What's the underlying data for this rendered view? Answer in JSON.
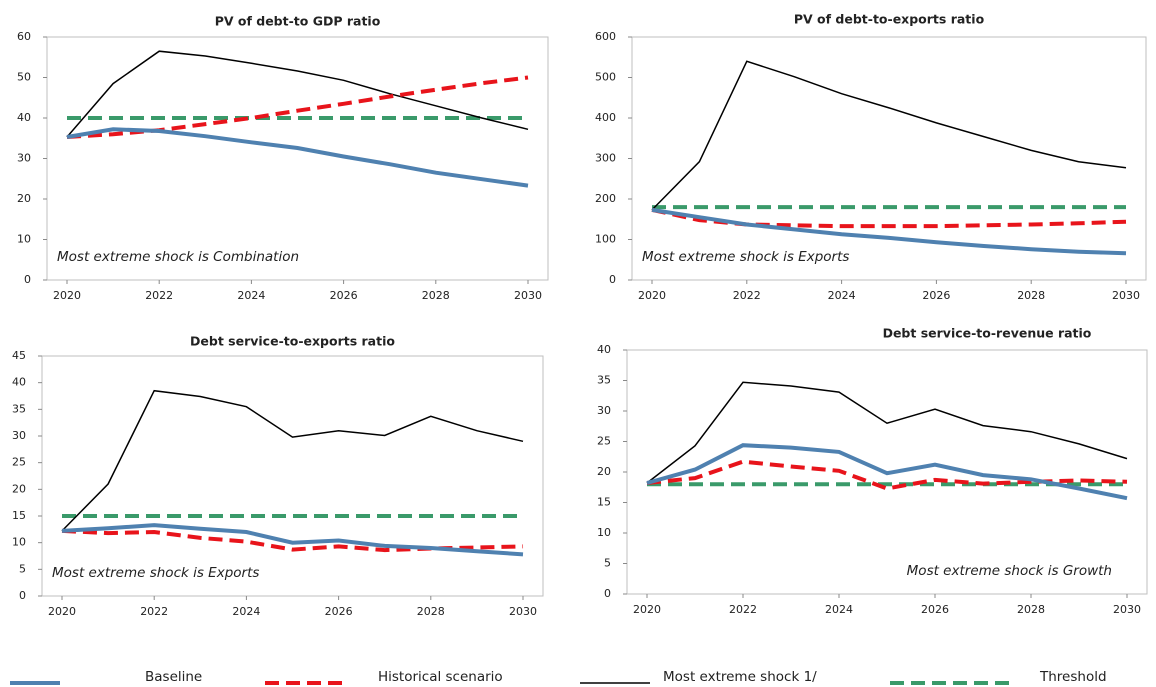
{
  "chart_data": [
    {
      "type": "line",
      "title": "PV of debt-to GDP ratio",
      "x": [
        2020,
        2021,
        2022,
        2023,
        2024,
        2025,
        2026,
        2027,
        2028,
        2029,
        2030
      ],
      "xlim": [
        2020,
        2030
      ],
      "xticks": [
        2020,
        2022,
        2024,
        2026,
        2028,
        2030
      ],
      "ylim": [
        0,
        60
      ],
      "yticks": [
        0,
        10,
        20,
        30,
        40,
        50,
        60
      ],
      "annotation": "Most extreme shock is Combination",
      "annotation_corner": "bottom-left",
      "series": [
        {
          "values": [
            35.3,
            37.2,
            36.8,
            35.5,
            34,
            32.6,
            30.5,
            28.6,
            26.5,
            24.9,
            23.3
          ]
        },
        {
          "values": [
            35.3,
            36,
            37,
            38.5,
            40,
            41.8,
            43.5,
            45.3,
            47,
            48.6,
            50
          ]
        },
        {
          "values": [
            35.3,
            48.5,
            56.5,
            55.3,
            53.5,
            51.6,
            49.3,
            46,
            43,
            40,
            37.2
          ]
        },
        {
          "values": [
            40,
            40,
            40,
            40,
            40,
            40,
            40,
            40,
            40,
            40,
            40
          ]
        }
      ]
    },
    {
      "type": "line",
      "title": "PV of debt-to-exports ratio",
      "x": [
        2020,
        2021,
        2022,
        2023,
        2024,
        2025,
        2026,
        2027,
        2028,
        2029,
        2030
      ],
      "xlim": [
        2020,
        2030
      ],
      "xticks": [
        2020,
        2022,
        2024,
        2026,
        2028,
        2030
      ],
      "ylim": [
        0,
        600
      ],
      "yticks": [
        0,
        100,
        200,
        300,
        400,
        500,
        600
      ],
      "annotation": "Most extreme shock is Exports",
      "annotation_corner": "bottom-left",
      "series": [
        {
          "values": [
            173,
            155,
            137,
            125,
            113,
            104,
            93,
            84,
            76,
            70,
            66
          ]
        },
        {
          "values": [
            173,
            148,
            137,
            135,
            133,
            133,
            133,
            135,
            137,
            140,
            144
          ]
        },
        {
          "values": [
            173,
            292,
            540,
            502,
            460,
            425,
            388,
            354,
            320,
            292,
            277
          ]
        },
        {
          "values": [
            180,
            180,
            180,
            180,
            180,
            180,
            180,
            180,
            180,
            180,
            180
          ]
        }
      ]
    },
    {
      "type": "line",
      "title": "Debt service-to-exports ratio",
      "x": [
        2020,
        2021,
        2022,
        2023,
        2024,
        2025,
        2026,
        2027,
        2028,
        2029,
        2030
      ],
      "xlim": [
        2020,
        2030
      ],
      "xticks": [
        2020,
        2022,
        2024,
        2026,
        2028,
        2030
      ],
      "ylim": [
        0,
        45
      ],
      "yticks": [
        0,
        5,
        10,
        15,
        20,
        25,
        30,
        35,
        40,
        45
      ],
      "annotation": "Most extreme shock is Exports",
      "annotation_corner": "bottom-left",
      "series": [
        {
          "values": [
            12.2,
            12.7,
            13.3,
            12.6,
            12,
            10,
            10.4,
            9.4,
            9,
            8.4,
            7.8
          ]
        },
        {
          "values": [
            12.2,
            11.8,
            12,
            10.9,
            10.2,
            8.7,
            9.3,
            8.6,
            8.9,
            9.1,
            9.3
          ]
        },
        {
          "values": [
            12.2,
            21,
            38.5,
            37.4,
            35.5,
            29.8,
            31,
            30.1,
            33.7,
            31,
            29
          ]
        },
        {
          "values": [
            15,
            15,
            15,
            15,
            15,
            15,
            15,
            15,
            15,
            15,
            15
          ]
        }
      ]
    },
    {
      "type": "line",
      "title": "Debt service-to-revenue ratio",
      "x": [
        2020,
        2021,
        2022,
        2023,
        2024,
        2025,
        2026,
        2027,
        2028,
        2029,
        2030
      ],
      "xlim": [
        2020,
        2030
      ],
      "xticks": [
        2020,
        2022,
        2024,
        2026,
        2028,
        2030
      ],
      "ylim": [
        0,
        40
      ],
      "yticks": [
        0,
        5,
        10,
        15,
        20,
        25,
        30,
        35,
        40
      ],
      "annotation": "Most extreme shock is Growth",
      "annotation_corner": "bottom-right",
      "series": [
        {
          "values": [
            18.2,
            20.4,
            24.4,
            24,
            23.3,
            19.8,
            21.2,
            19.5,
            18.8,
            17.3,
            15.7
          ]
        },
        {
          "values": [
            18.2,
            19,
            21.7,
            20.9,
            20.2,
            17.3,
            18.7,
            18.1,
            18.4,
            18.6,
            18.4
          ]
        },
        {
          "values": [
            18.2,
            24.3,
            34.7,
            34.1,
            33.1,
            28,
            30.3,
            27.6,
            26.6,
            24.6,
            22.2
          ]
        },
        {
          "values": [
            18,
            18,
            18,
            18,
            18,
            18,
            18,
            18,
            18,
            18,
            18
          ]
        }
      ]
    }
  ],
  "legend": [
    {
      "name": "Baseline",
      "color": "#4f81b0",
      "dash": "solid",
      "width": 4
    },
    {
      "name": "Historical scenario",
      "color": "#e8141b",
      "dash": "dashed",
      "width": 4
    },
    {
      "name": "Most extreme shock 1/",
      "color": "#000000",
      "dash": "solid",
      "width": 1.5
    },
    {
      "name": "Threshold",
      "color": "#3a9a6a",
      "dash": "dashed",
      "width": 4
    }
  ]
}
